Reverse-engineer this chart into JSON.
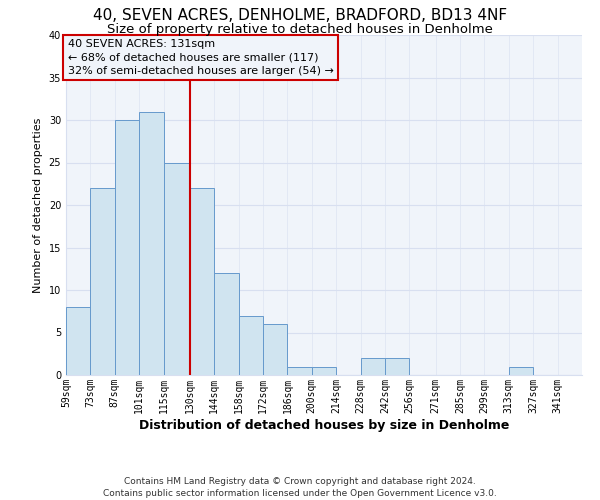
{
  "title": "40, SEVEN ACRES, DENHOLME, BRADFORD, BD13 4NF",
  "subtitle": "Size of property relative to detached houses in Denholme",
  "xlabel": "Distribution of detached houses by size in Denholme",
  "ylabel": "Number of detached properties",
  "bar_color": "#d0e4f0",
  "bar_edge_color": "#6699cc",
  "background_color": "#ffffff",
  "plot_bg_color": "#f0f4fa",
  "grid_color": "#d8dff0",
  "vline_x": 130,
  "vline_color": "#cc0000",
  "annotation_text": "40 SEVEN ACRES: 131sqm\n← 68% of detached houses are smaller (117)\n32% of semi-detached houses are larger (54) →",
  "annotation_box_edge_color": "#cc0000",
  "bin_edges": [
    59,
    73,
    87,
    101,
    115,
    130,
    144,
    158,
    172,
    186,
    200,
    214,
    228,
    242,
    256,
    271,
    285,
    299,
    313,
    327,
    341
  ],
  "bin_counts": [
    8,
    22,
    30,
    31,
    25,
    22,
    12,
    7,
    6,
    1,
    1,
    0,
    2,
    2,
    0,
    0,
    0,
    0,
    1,
    0
  ],
  "xlim_left": 59,
  "xlim_right": 355,
  "ylim_top": 40,
  "tick_labels": [
    "59sqm",
    "73sqm",
    "87sqm",
    "101sqm",
    "115sqm",
    "130sqm",
    "144sqm",
    "158sqm",
    "172sqm",
    "186sqm",
    "200sqm",
    "214sqm",
    "228sqm",
    "242sqm",
    "256sqm",
    "271sqm",
    "285sqm",
    "299sqm",
    "313sqm",
    "327sqm",
    "341sqm"
  ],
  "tick_positions": [
    59,
    73,
    87,
    101,
    115,
    130,
    144,
    158,
    172,
    186,
    200,
    214,
    228,
    242,
    256,
    271,
    285,
    299,
    313,
    327,
    341
  ],
  "yticks": [
    0,
    5,
    10,
    15,
    20,
    25,
    30,
    35,
    40
  ],
  "footer_text": "Contains HM Land Registry data © Crown copyright and database right 2024.\nContains public sector information licensed under the Open Government Licence v3.0.",
  "title_fontsize": 11,
  "subtitle_fontsize": 9.5,
  "xlabel_fontsize": 9,
  "ylabel_fontsize": 8,
  "tick_fontsize": 7,
  "annotation_fontsize": 8,
  "footer_fontsize": 6.5
}
